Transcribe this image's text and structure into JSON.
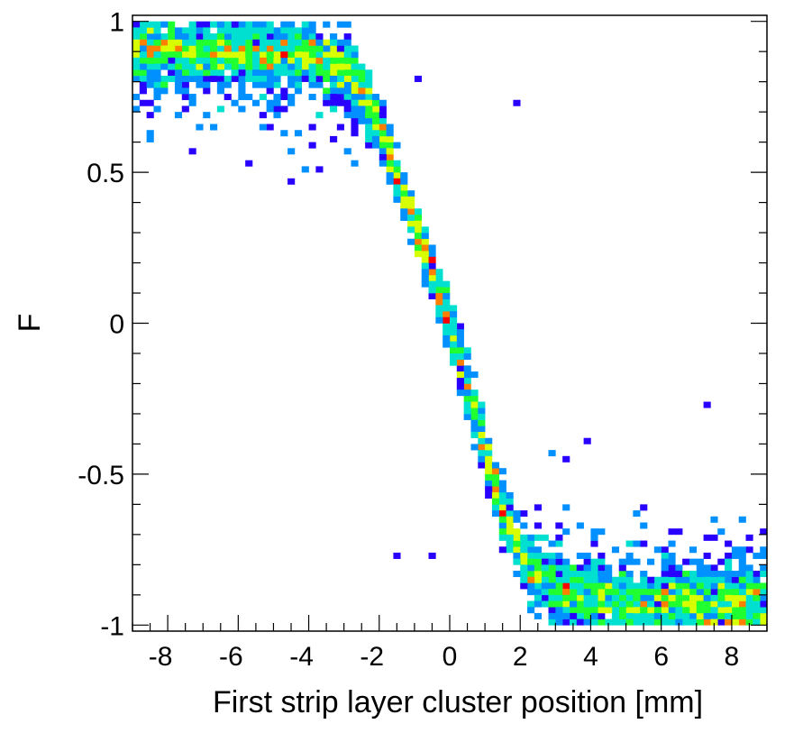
{
  "chart_data": {
    "type": "heatmap",
    "xlabel": "First strip layer cluster position [mm]",
    "ylabel": "F",
    "xlim": [
      -9,
      9
    ],
    "ylim": [
      -1.02,
      1.02
    ],
    "x_ticks": [
      -8,
      -6,
      -4,
      -2,
      0,
      2,
      4,
      6,
      8
    ],
    "x_tick_labels": [
      "-8",
      "-6",
      "-4",
      "-2",
      "0",
      "2",
      "4",
      "6",
      "8"
    ],
    "y_ticks": [
      -1,
      -0.5,
      0,
      0.5,
      1
    ],
    "y_tick_labels": [
      "-1",
      "-0.5",
      "0",
      "0.5",
      "1"
    ],
    "colormap": [
      "#2800ff",
      "#0090ff",
      "#00e0d0",
      "#20ff30",
      "#d8ff00",
      "#ff8000",
      "#ff0000"
    ],
    "grid": false,
    "curve": {
      "description": "F vs position: plateau near +0.9 for x < -3, steep fall through 0 near x=0, plateau near -0.92 for x > 2.5",
      "x": [
        -9,
        -8,
        -6,
        -4,
        -3,
        -2.5,
        -2,
        -1.5,
        -1,
        -0.5,
        0,
        0.5,
        1,
        1.5,
        2,
        2.5,
        3,
        4,
        6,
        8,
        9
      ],
      "F": [
        0.9,
        0.9,
        0.9,
        0.89,
        0.85,
        0.78,
        0.66,
        0.48,
        0.33,
        0.17,
        0.0,
        -0.2,
        -0.42,
        -0.62,
        -0.76,
        -0.84,
        -0.88,
        -0.91,
        -0.92,
        -0.93,
        -0.93
      ]
    },
    "isolated_points": [
      {
        "x": 1.9,
        "F": 0.72
      },
      {
        "x": -0.8,
        "F": 0.8
      },
      {
        "x": -4.4,
        "F": 0.46
      },
      {
        "x": 7.3,
        "F": -0.28
      },
      {
        "x": 3.8,
        "F": -0.4
      },
      {
        "x": -1.4,
        "F": -0.78
      },
      {
        "x": -0.5,
        "F": -0.78
      },
      {
        "x": -5.7,
        "F": 0.52
      },
      {
        "x": -3.7,
        "F": 0.5
      }
    ]
  }
}
